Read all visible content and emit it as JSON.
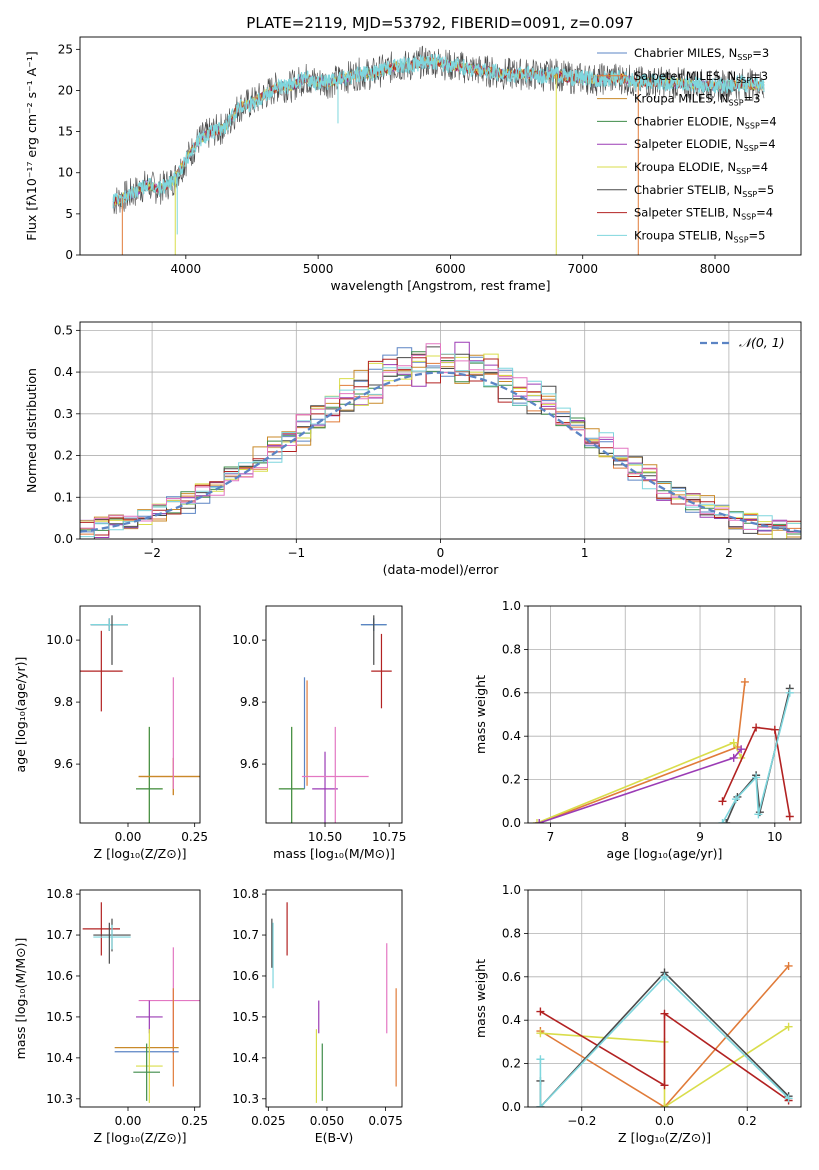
{
  "figure": {
    "title": "PLATE=2119, MJD=53792, FIBERID=0091, z=0.097"
  },
  "colors": {
    "Chabrier MILES": "#5b84c4",
    "Salpeter MILES": "#e07b39",
    "Kroupa MILES": "#c98a2a",
    "Chabrier ELODIE": "#3f8c4a",
    "Salpeter ELODIE": "#9b3bb5",
    "Kroupa ELODIE": "#d9dd4b",
    "Chabrier STELIB": "#4a4a4a",
    "Salpeter STELIB": "#b22222",
    "Kroupa STELIB": "#7fd6dd",
    "Salpeter MILES alt": "#e377c2"
  },
  "chart_data": [
    {
      "id": "spectrum",
      "type": "line",
      "xlabel": "wavelength [Angstrom, rest frame]",
      "ylabel": "Flux [fλ10⁻¹⁷ erg cm⁻² s⁻¹ A⁻¹]",
      "xlim": [
        3200,
        8650
      ],
      "ylim": [
        0,
        26.5
      ],
      "xticks": [
        4000,
        5000,
        6000,
        7000,
        8000
      ],
      "yticks": [
        0,
        5,
        10,
        15,
        20,
        25
      ],
      "legend_position": "right",
      "series": [
        {
          "name": "Chabrier MILES, Nₛₛₚ=3",
          "label": "Chabrier MILES, N",
          "sub": "SSP",
          "suffix": "=3",
          "color_key": "Chabrier MILES"
        },
        {
          "name": "Salpeter MILES, Nₛₛₚ=3",
          "label": "Salpeter MILES, N",
          "sub": "SSP",
          "suffix": "=3",
          "color_key": "Salpeter MILES"
        },
        {
          "name": "Kroupa MILES, Nₛₛₚ=3",
          "label": "Kroupa MILES, N",
          "sub": "SSP",
          "suffix": "=3",
          "color_key": "Kroupa MILES"
        },
        {
          "name": "Chabrier ELODIE, Nₛₛₚ=4",
          "label": "Chabrier ELODIE, N",
          "sub": "SSP",
          "suffix": "=4",
          "color_key": "Chabrier ELODIE"
        },
        {
          "name": "Salpeter ELODIE, Nₛₛₚ=4",
          "label": "Salpeter ELODIE, N",
          "sub": "SSP",
          "suffix": "=4",
          "color_key": "Salpeter ELODIE"
        },
        {
          "name": "Kroupa ELODIE, Nₛₛₚ=4",
          "label": "Kroupa ELODIE, N",
          "sub": "SSP",
          "suffix": "=4",
          "color_key": "Kroupa ELODIE"
        },
        {
          "name": "Chabrier STELIB, Nₛₛₚ=5",
          "label": "Chabrier STELIB, N",
          "sub": "SSP",
          "suffix": "=5",
          "color_key": "Chabrier STELIB"
        },
        {
          "name": "Salpeter STELIB, Nₛₛₚ=4",
          "label": "Salpeter STELIB, N",
          "sub": "SSP",
          "suffix": "=4",
          "color_key": "Salpeter STELIB"
        },
        {
          "name": "Kroupa STELIB, Nₛₛₚ=5",
          "label": "Kroupa STELIB, N",
          "sub": "SSP",
          "suffix": "=5",
          "color_key": "Kroupa STELIB"
        }
      ],
      "envelope": [
        [
          3450,
          6.5
        ],
        [
          3600,
          7.5
        ],
        [
          3700,
          8.5
        ],
        [
          3800,
          8.0
        ],
        [
          3900,
          9.0
        ],
        [
          4000,
          11.5
        ],
        [
          4100,
          14.0
        ],
        [
          4200,
          15.0
        ],
        [
          4300,
          15.5
        ],
        [
          4400,
          18.0
        ],
        [
          4500,
          18.5
        ],
        [
          4600,
          19.5
        ],
        [
          4700,
          20.5
        ],
        [
          4800,
          20.5
        ],
        [
          4900,
          21.5
        ],
        [
          5000,
          21.0
        ],
        [
          5100,
          21.0
        ],
        [
          5200,
          21.5
        ],
        [
          5300,
          22.0
        ],
        [
          5400,
          22.0
        ],
        [
          5500,
          22.5
        ],
        [
          5600,
          23.0
        ],
        [
          5700,
          23.0
        ],
        [
          5800,
          23.5
        ],
        [
          5900,
          23.5
        ],
        [
          6000,
          23.0
        ],
        [
          6100,
          22.8
        ],
        [
          6200,
          22.5
        ],
        [
          6300,
          22.3
        ],
        [
          6400,
          22.0
        ],
        [
          6500,
          22.0
        ],
        [
          6600,
          22.0
        ],
        [
          6700,
          21.8
        ],
        [
          6800,
          22.0
        ],
        [
          6900,
          21.5
        ],
        [
          7000,
          21.5
        ],
        [
          7100,
          21.3
        ],
        [
          7200,
          21.5
        ],
        [
          7300,
          21.5
        ],
        [
          7400,
          21.0
        ],
        [
          7600,
          21.0
        ],
        [
          7800,
          20.8
        ],
        [
          8000,
          20.5
        ],
        [
          8200,
          20.8
        ],
        [
          8370,
          20.6
        ]
      ],
      "dips": [
        {
          "x": 3520,
          "y": 0.0,
          "color_key": "Salpeter MILES"
        },
        {
          "x": 3920,
          "y": 0.0,
          "color_key": "Kroupa ELODIE"
        },
        {
          "x": 3935,
          "y": 2.5,
          "color_key": "Kroupa STELIB"
        },
        {
          "x": 5150,
          "y": 16.0,
          "color_key": "Kroupa STELIB"
        },
        {
          "x": 6800,
          "y": 0.0,
          "color_key": "Kroupa ELODIE"
        },
        {
          "x": 7420,
          "y": 0.0,
          "color_key": "Salpeter MILES"
        }
      ]
    },
    {
      "id": "residuals",
      "type": "line",
      "xlabel": "(data-model)/error",
      "ylabel": "Normed distribution",
      "xlim": [
        -2.5,
        2.5
      ],
      "ylim": [
        0,
        0.52
      ],
      "xticks": [
        -2,
        -1,
        0,
        1,
        2
      ],
      "yticks": [
        0.0,
        0.1,
        0.2,
        0.3,
        0.4,
        0.5
      ],
      "legend_label": "𝒩(0, 1)",
      "legend_position": "top-right",
      "grid": true
    },
    {
      "id": "age_Z",
      "type": "scatter",
      "xlabel": "Z [log₁₀(Z/Z⊙)]",
      "ylabel": "age  [log₁₀(age/yr)]",
      "xlim": [
        -0.18,
        0.27
      ],
      "ylim": [
        9.41,
        10.11
      ],
      "xticks": [
        0.0,
        0.25
      ],
      "yticks": [
        9.6,
        9.8,
        10.0
      ],
      "points": [
        {
          "color_key": "Chabrier MILES",
          "x": -0.07,
          "y": 10.05,
          "xerr": 0.07,
          "yerr": 0.02
        },
        {
          "color_key": "Chabrier STELIB",
          "x": -0.07,
          "y": 10.05,
          "xerr": 0.07,
          "yerr": 0.02
        },
        {
          "color_key": "Kroupa STELIB",
          "x": -0.07,
          "y": 10.05,
          "xerr": 0.07,
          "yerr": 0.02
        },
        {
          "color_key": "Chabrier STELIB",
          "x": -0.06,
          "y": 10.0,
          "xerr": 0.0,
          "yerr": 0.08
        },
        {
          "color_key": "Salpeter STELIB",
          "x": -0.1,
          "y": 9.9,
          "xerr": 0.08,
          "yerr": 0.13
        },
        {
          "color_key": "Kroupa ELODIE",
          "x": 0.08,
          "y": 9.52,
          "xerr": 0.05,
          "yerr": 0.2
        },
        {
          "color_key": "Chabrier ELODIE",
          "x": 0.08,
          "y": 9.52,
          "xerr": 0.05,
          "yerr": 0.2
        },
        {
          "color_key": "Salpeter MILES",
          "x": 0.17,
          "y": 9.56,
          "xerr": 0.13,
          "yerr": 0.06
        },
        {
          "color_key": "Kroupa MILES",
          "x": 0.17,
          "y": 9.56,
          "xerr": 0.13,
          "yerr": 0.06
        },
        {
          "color_key": "Salpeter MILES alt",
          "x": 0.17,
          "y": 9.7,
          "xerr": 0.0,
          "yerr": 0.18
        }
      ]
    },
    {
      "id": "age_mass",
      "type": "scatter",
      "xlabel": "mass [log₁₀(M/M⊙)]",
      "ylabel": "",
      "xlim": [
        10.27,
        10.8
      ],
      "ylim": [
        9.41,
        10.11
      ],
      "xticks": [
        10.5,
        10.75
      ],
      "yticks": [
        9.6,
        9.8,
        10.0
      ],
      "points": [
        {
          "color_key": "Chabrier STELIB",
          "x": 10.69,
          "y": 10.05,
          "xerr": 0.05,
          "yerr": 0.02
        },
        {
          "color_key": "Kroupa STELIB",
          "x": 10.69,
          "y": 10.05,
          "xerr": 0.05,
          "yerr": 0.02
        },
        {
          "color_key": "Chabrier MILES",
          "x": 10.69,
          "y": 10.05,
          "xerr": 0.05,
          "yerr": 0.02
        },
        {
          "color_key": "Chabrier STELIB",
          "x": 10.69,
          "y": 10.0,
          "xerr": 0.0,
          "yerr": 0.08
        },
        {
          "color_key": "Salpeter STELIB",
          "x": 10.72,
          "y": 9.9,
          "xerr": 0.04,
          "yerr": 0.12
        },
        {
          "color_key": "Chabrier MILES",
          "x": 10.42,
          "y": 9.7,
          "xerr": 0.0,
          "yerr": 0.18
        },
        {
          "color_key": "Salpeter MILES",
          "x": 10.43,
          "y": 9.7,
          "xerr": 0.0,
          "yerr": 0.17
        },
        {
          "color_key": "Kroupa ELODIE",
          "x": 10.37,
          "y": 9.52,
          "xerr": 0.05,
          "yerr": 0.2
        },
        {
          "color_key": "Chabrier ELODIE",
          "x": 10.37,
          "y": 9.52,
          "xerr": 0.05,
          "yerr": 0.2
        },
        {
          "color_key": "Salpeter ELODIE",
          "x": 10.5,
          "y": 9.52,
          "xerr": 0.05,
          "yerr": 0.12
        },
        {
          "color_key": "Salpeter MILES alt",
          "x": 10.54,
          "y": 9.56,
          "xerr": 0.13,
          "yerr": 0.16
        }
      ]
    },
    {
      "id": "weight_age",
      "type": "line",
      "xlabel": "age  [log₁₀(age/yr)]",
      "ylabel": "mass weight",
      "xlim": [
        6.7,
        10.35
      ],
      "ylim": [
        0,
        1.0
      ],
      "xticks": [
        7,
        8,
        9,
        10
      ],
      "yticks": [
        0.0,
        0.2,
        0.4,
        0.6,
        0.8,
        1.0
      ],
      "grid": true,
      "series": [
        {
          "color_key": "Salpeter MILES",
          "points": [
            [
              6.85,
              0.0
            ],
            [
              9.5,
              0.35
            ],
            [
              9.6,
              0.65
            ]
          ]
        },
        {
          "color_key": "Kroupa ELODIE",
          "points": [
            [
              6.82,
              0.0
            ],
            [
              9.45,
              0.37
            ],
            [
              9.55,
              0.3
            ]
          ]
        },
        {
          "color_key": "Salpeter ELODIE",
          "points": [
            [
              6.85,
              0.0
            ],
            [
              9.45,
              0.3
            ],
            [
              9.55,
              0.34
            ]
          ]
        },
        {
          "color_key": "Salpeter STELIB",
          "points": [
            [
              9.3,
              0.1
            ],
            [
              9.75,
              0.44
            ],
            [
              10.0,
              0.43
            ],
            [
              10.2,
              0.03
            ]
          ]
        },
        {
          "color_key": "Chabrier STELIB",
          "points": [
            [
              9.35,
              0.0
            ],
            [
              9.5,
              0.12
            ],
            [
              9.75,
              0.22
            ],
            [
              9.8,
              0.05
            ],
            [
              10.2,
              0.62
            ]
          ]
        },
        {
          "color_key": "Kroupa STELIB",
          "points": [
            [
              9.3,
              0.0
            ],
            [
              9.48,
              0.11
            ],
            [
              9.75,
              0.21
            ],
            [
              9.78,
              0.04
            ],
            [
              10.2,
              0.6
            ]
          ]
        }
      ]
    },
    {
      "id": "mass_Z",
      "type": "scatter",
      "xlabel": "Z [log₁₀(Z/Z⊙)]",
      "ylabel": "mass [log₁₀(M/M⊙)]",
      "xlim": [
        -0.18,
        0.27
      ],
      "ylim": [
        10.28,
        10.81
      ],
      "xticks": [
        0.0,
        0.25
      ],
      "yticks": [
        10.3,
        10.4,
        10.5,
        10.6,
        10.7,
        10.8
      ],
      "points": [
        {
          "color_key": "Salpeter STELIB",
          "x": -0.1,
          "y": 10.715,
          "xerr": 0.07,
          "yerr": 0.065
        },
        {
          "color_key": "Chabrier STELIB",
          "x": -0.06,
          "y": 10.7,
          "xerr": 0.07,
          "yerr": 0.04
        },
        {
          "color_key": "Kroupa STELIB",
          "x": -0.06,
          "y": 10.695,
          "xerr": 0.07,
          "yerr": 0.03
        },
        {
          "color_key": "Chabrier STELIB",
          "x": -0.07,
          "y": 10.68,
          "xerr": 0.0,
          "yerr": 0.05
        },
        {
          "color_key": "Salpeter MILES alt",
          "x": 0.17,
          "y": 10.54,
          "xerr": 0.13,
          "yerr": 0.13
        },
        {
          "color_key": "Salpeter ELODIE",
          "x": 0.08,
          "y": 10.5,
          "xerr": 0.05,
          "yerr": 0.04
        },
        {
          "color_key": "Salpeter MILES",
          "x": 0.17,
          "y": 10.45,
          "xerr": 0.0,
          "yerr": 0.12
        },
        {
          "color_key": "Kroupa MILES",
          "x": 0.07,
          "y": 10.425,
          "xerr": 0.12,
          "yerr": 0.0
        },
        {
          "color_key": "Chabrier MILES",
          "x": 0.07,
          "y": 10.415,
          "xerr": 0.12,
          "yerr": 0.0
        },
        {
          "color_key": "Kroupa ELODIE",
          "x": 0.08,
          "y": 10.38,
          "xerr": 0.05,
          "yerr": 0.09
        },
        {
          "color_key": "Chabrier ELODIE",
          "x": 0.07,
          "y": 10.365,
          "xerr": 0.05,
          "yerr": 0.07
        }
      ]
    },
    {
      "id": "mass_ebv",
      "type": "scatter",
      "xlabel": "E(B-V)",
      "ylabel": "",
      "xlim": [
        0.024,
        0.082
      ],
      "ylim": [
        10.28,
        10.81
      ],
      "xticks": [
        0.025,
        0.05,
        0.075
      ],
      "yticks": [
        10.3,
        10.4,
        10.5,
        10.6,
        10.7,
        10.8
      ],
      "points": [
        {
          "color_key": "Chabrier STELIB",
          "x": 0.0265,
          "y": 10.68,
          "xerr": 0.0,
          "yerr": 0.06
        },
        {
          "color_key": "Kroupa STELIB",
          "x": 0.027,
          "y": 10.65,
          "xerr": 0.0,
          "yerr": 0.08
        },
        {
          "color_key": "Salpeter STELIB",
          "x": 0.033,
          "y": 10.715,
          "xerr": 0.0,
          "yerr": 0.065
        },
        {
          "color_key": "Salpeter ELODIE",
          "x": 0.0465,
          "y": 10.5,
          "xerr": 0.0,
          "yerr": 0.04
        },
        {
          "color_key": "Kroupa ELODIE",
          "x": 0.0455,
          "y": 10.38,
          "xerr": 0.0,
          "yerr": 0.09
        },
        {
          "color_key": "Chabrier ELODIE",
          "x": 0.048,
          "y": 10.365,
          "xerr": 0.0,
          "yerr": 0.07
        },
        {
          "color_key": "Salpeter MILES alt",
          "x": 0.0755,
          "y": 10.57,
          "xerr": 0.0,
          "yerr": 0.11
        },
        {
          "color_key": "Salpeter MILES",
          "x": 0.0795,
          "y": 10.45,
          "xerr": 0.0,
          "yerr": 0.12
        }
      ]
    },
    {
      "id": "weight_Z",
      "type": "line",
      "xlabel": "Z [log₁₀(Z/Z⊙)]",
      "ylabel": "mass weight",
      "xlim": [
        -0.33,
        0.33
      ],
      "ylim": [
        0,
        1.0
      ],
      "xticks": [
        -0.2,
        0.0,
        0.2
      ],
      "yticks": [
        0.0,
        0.2,
        0.4,
        0.6,
        0.8,
        1.0
      ],
      "grid": true,
      "series": [
        {
          "color_key": "Salpeter MILES",
          "points": [
            [
              -0.3,
              0.35
            ],
            [
              0.0,
              0.0
            ],
            [
              0.3,
              0.65
            ]
          ]
        },
        {
          "color_key": "Kroupa ELODIE",
          "points": [
            [
              -0.3,
              0.34
            ],
            [
              0.0,
              0.3
            ],
            [
              0.0,
              0.0
            ],
            [
              0.3,
              0.37
            ]
          ]
        },
        {
          "color_key": "Salpeter STELIB",
          "points": [
            [
              -0.3,
              0.44
            ],
            [
              0.0,
              0.1
            ],
            [
              0.0,
              0.43
            ],
            [
              0.3,
              0.03
            ]
          ]
        },
        {
          "color_key": "Chabrier STELIB",
          "points": [
            [
              -0.3,
              0.12
            ],
            [
              -0.3,
              0.0
            ],
            [
              0.0,
              0.62
            ],
            [
              0.3,
              0.05
            ]
          ]
        },
        {
          "color_key": "Kroupa STELIB",
          "points": [
            [
              -0.3,
              0.22
            ],
            [
              -0.3,
              0.0
            ],
            [
              0.0,
              0.6
            ],
            [
              0.3,
              0.04
            ]
          ]
        }
      ]
    }
  ]
}
